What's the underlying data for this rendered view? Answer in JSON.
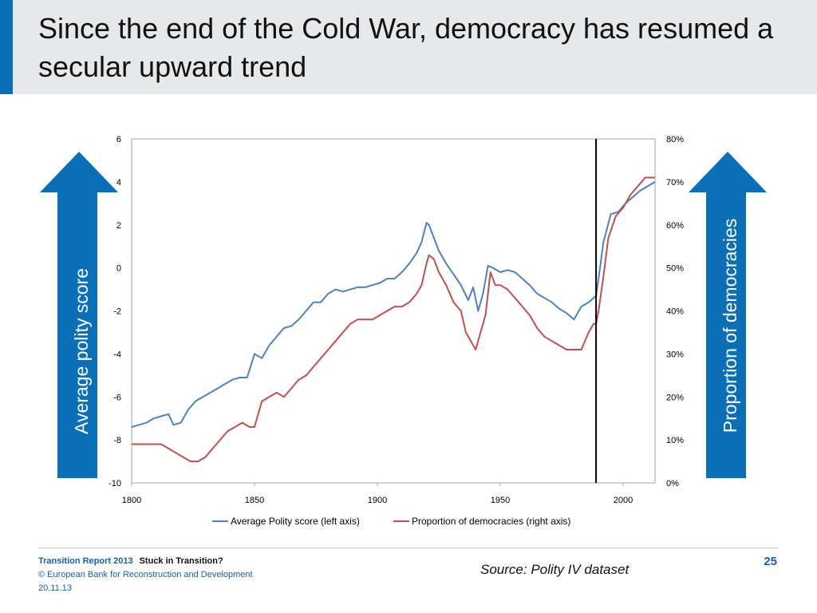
{
  "slide": {
    "title": "Since the end of the Cold War, democracy has resumed a secular upward trend",
    "left_arrow_label": "Average polity score",
    "right_arrow_label": "Proportion of democracies",
    "footer": {
      "report": "Transition Report 2013",
      "report_subtitle": "Stuck in Transition?",
      "copyright": "© European Bank for Reconstruction and Development",
      "date": "20.11.13"
    },
    "source_label": "Source:",
    "source_text": "Polity IV dataset",
    "page_number": "25",
    "colors": {
      "accent": "#0b6fb8",
      "header_bg": "#e6e8ea",
      "arrow": "#0b6fb8"
    },
    "icons": [
      "up-arrow-icon"
    ]
  },
  "chart_data": {
    "type": "line",
    "title": "",
    "xlabel": "",
    "ylabel_left": "",
    "ylabel_right": "",
    "xlim": [
      1800,
      2013
    ],
    "xticks": [
      "1800",
      "1850",
      "1900",
      "1950",
      "2000"
    ],
    "ylim_left": [
      -10,
      6
    ],
    "yticks_left": [
      "-10",
      "-8",
      "-6",
      "-4",
      "-2",
      "0",
      "2",
      "4",
      "6"
    ],
    "ylim_right": [
      0,
      80
    ],
    "yticks_right": [
      "0%",
      "10%",
      "20%",
      "30%",
      "40%",
      "50%",
      "60%",
      "70%",
      "80%"
    ],
    "grid": false,
    "legend_position": "bottom",
    "vertical_marker_x": 1989,
    "series": [
      {
        "name": "Average Polity score (left axis)",
        "axis": "left",
        "color": "#4f81bd",
        "x": [
          1800,
          1803,
          1806,
          1809,
          1812,
          1815,
          1817,
          1820,
          1823,
          1826,
          1829,
          1832,
          1835,
          1838,
          1841,
          1844,
          1847,
          1850,
          1853,
          1856,
          1859,
          1862,
          1865,
          1868,
          1871,
          1874,
          1877,
          1880,
          1883,
          1886,
          1889,
          1892,
          1895,
          1898,
          1901,
          1904,
          1907,
          1910,
          1913,
          1916,
          1918,
          1920,
          1921,
          1923,
          1925,
          1928,
          1931,
          1934,
          1937,
          1939,
          1941,
          1943,
          1945,
          1947,
          1950,
          1953,
          1956,
          1959,
          1962,
          1965,
          1968,
          1971,
          1974,
          1977,
          1980,
          1983,
          1986,
          1988,
          1989,
          1990,
          1992,
          1995,
          1998,
          2001,
          2004,
          2007,
          2010,
          2013
        ],
        "values": [
          -7.4,
          -7.3,
          -7.2,
          -7.0,
          -6.9,
          -6.8,
          -7.3,
          -7.2,
          -6.6,
          -6.2,
          -6.0,
          -5.8,
          -5.6,
          -5.4,
          -5.2,
          -5.1,
          -5.1,
          -4.0,
          -4.2,
          -3.6,
          -3.2,
          -2.8,
          -2.7,
          -2.4,
          -2.0,
          -1.6,
          -1.6,
          -1.2,
          -1.0,
          -1.1,
          -1.0,
          -0.9,
          -0.9,
          -0.8,
          -0.7,
          -0.5,
          -0.5,
          -0.2,
          0.2,
          0.7,
          1.2,
          2.1,
          2.0,
          1.4,
          0.8,
          0.2,
          -0.3,
          -0.8,
          -1.5,
          -0.9,
          -2.0,
          -1.2,
          0.1,
          0.0,
          -0.2,
          -0.1,
          -0.2,
          -0.5,
          -0.8,
          -1.2,
          -1.4,
          -1.6,
          -1.9,
          -2.1,
          -2.4,
          -1.8,
          -1.6,
          -1.4,
          -1.3,
          -0.5,
          1.2,
          2.5,
          2.6,
          3.0,
          3.3,
          3.6,
          3.8,
          4.0
        ]
      },
      {
        "name": "Proportion of democracies (right axis)",
        "axis": "right",
        "color": "#c0504d",
        "x": [
          1800,
          1803,
          1806,
          1809,
          1812,
          1815,
          1818,
          1821,
          1824,
          1827,
          1830,
          1833,
          1836,
          1839,
          1842,
          1845,
          1848,
          1850,
          1853,
          1856,
          1859,
          1862,
          1865,
          1868,
          1871,
          1874,
          1877,
          1880,
          1883,
          1886,
          1889,
          1892,
          1895,
          1898,
          1901,
          1904,
          1907,
          1910,
          1913,
          1916,
          1918,
          1920,
          1921,
          1923,
          1925,
          1928,
          1931,
          1934,
          1936,
          1938,
          1940,
          1942,
          1944,
          1946,
          1948,
          1950,
          1953,
          1956,
          1959,
          1962,
          1965,
          1968,
          1971,
          1974,
          1977,
          1980,
          1983,
          1986,
          1988,
          1989,
          1990,
          1992,
          1994,
          1997,
          2000,
          2003,
          2006,
          2009,
          2013
        ],
        "values": [
          9,
          9,
          9,
          9,
          9,
          8,
          7,
          6,
          5,
          5,
          6,
          8,
          10,
          12,
          13,
          14,
          13,
          13,
          19,
          20,
          21,
          20,
          22,
          24,
          25,
          27,
          29,
          31,
          33,
          35,
          37,
          38,
          38,
          38,
          39,
          40,
          41,
          41,
          42,
          44,
          46,
          51,
          53,
          52,
          49,
          46,
          42,
          40,
          35,
          33,
          31,
          35,
          39,
          49,
          46,
          46,
          45,
          43,
          41,
          39,
          36,
          34,
          33,
          32,
          31,
          31,
          31,
          35,
          37,
          37,
          40,
          48,
          57,
          62,
          64,
          67,
          69,
          71,
          71
        ]
      }
    ]
  }
}
